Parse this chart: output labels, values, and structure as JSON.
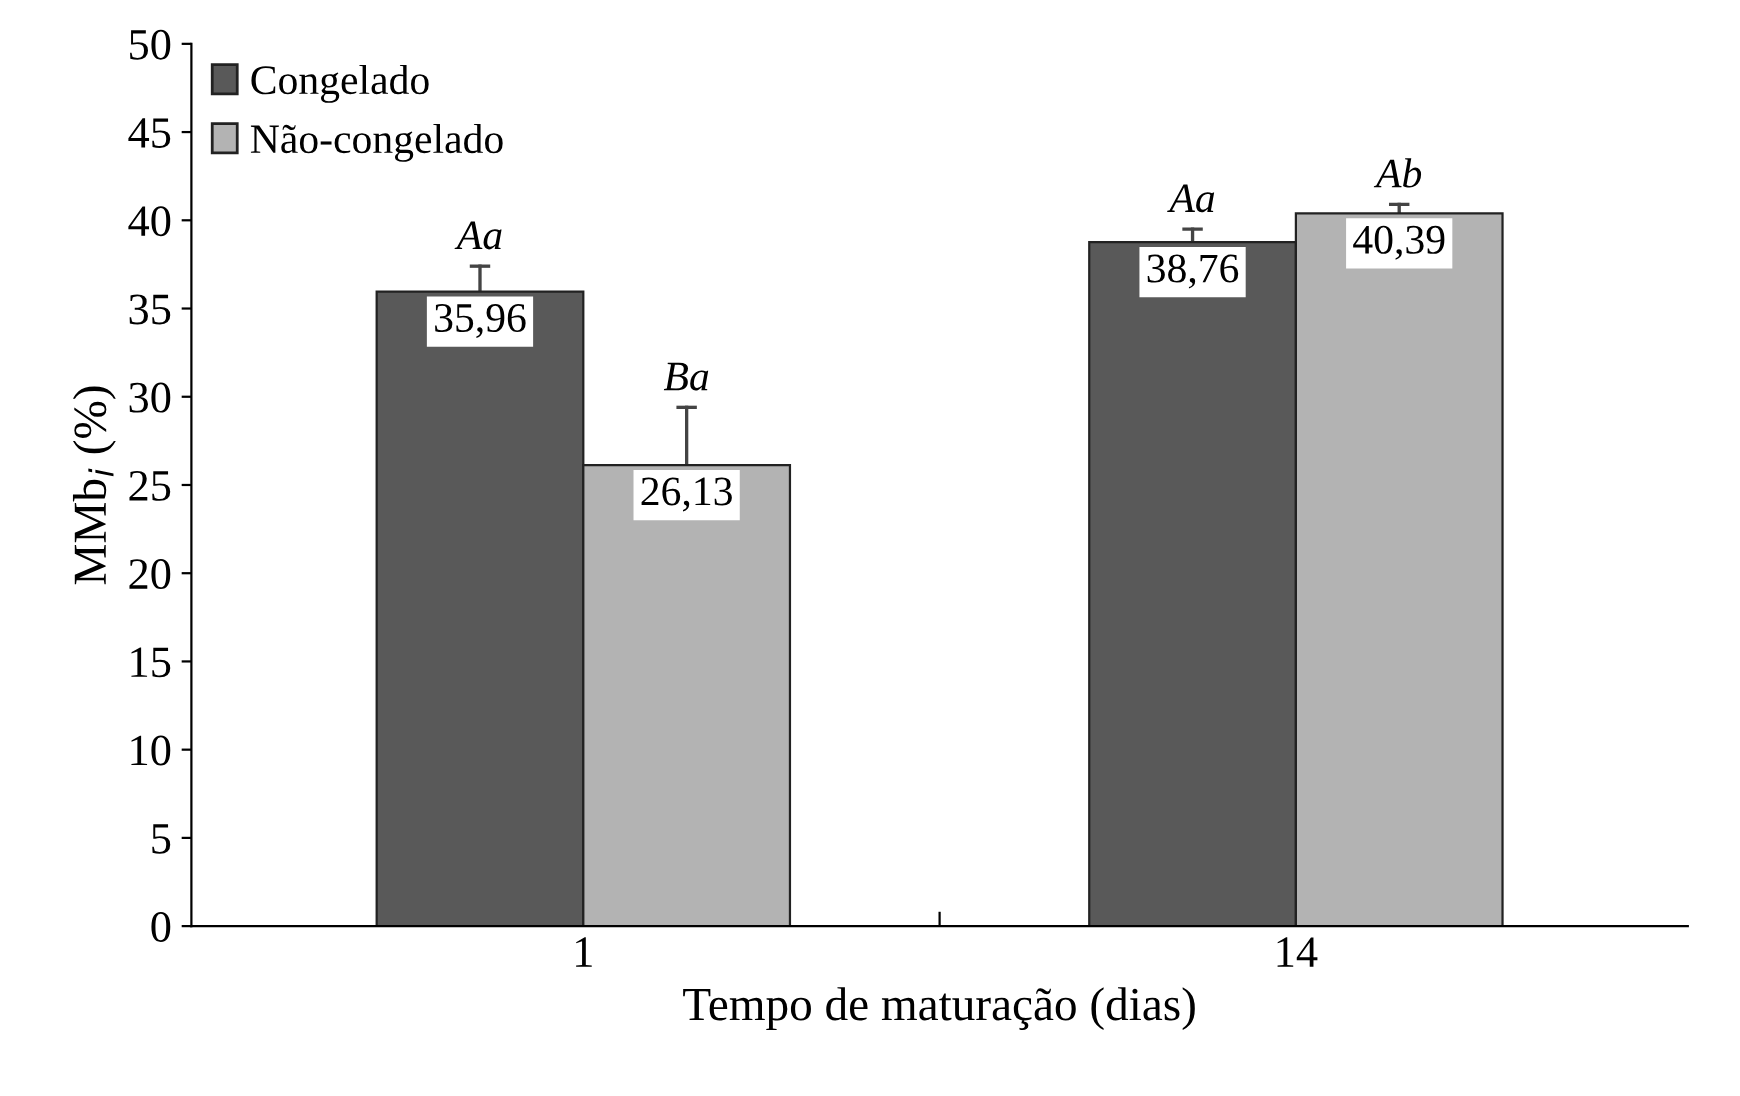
{
  "chart_data": {
    "type": "bar",
    "xlabel": "Tempo de maturação (dias)",
    "ylabel": "MMb$_{i}$ (%)",
    "categories": [
      "1",
      "14"
    ],
    "series": [
      {
        "name": "Congelado",
        "color": "#595959",
        "values": [
          35.96,
          38.76
        ],
        "value_labels": [
          "35,96",
          "38,76"
        ],
        "errors": [
          [
            35.96,
            37.4
          ],
          [
            38.76,
            39.5
          ]
        ]
      },
      {
        "name": "Não-congelado",
        "color": "#b3b3b3",
        "values": [
          26.13,
          40.39
        ],
        "value_labels": [
          "26,13",
          "40,39"
        ],
        "errors": [
          [
            26.13,
            29.4
          ],
          [
            40.39,
            40.9
          ]
        ]
      }
    ],
    "annotations": [
      {
        "text": "Aa",
        "x": "1",
        "y": 35.96
      },
      {
        "text": "Ba",
        "x": "1",
        "y": 26.13
      },
      {
        "text": "Aa",
        "x": "14",
        "y": 38.76
      },
      {
        "text": "Ab",
        "x": "14",
        "y": 40.39
      }
    ],
    "ylim": [
      0,
      50
    ],
    "yticks": [
      0,
      5,
      10,
      15,
      20,
      25,
      30,
      35,
      40,
      45,
      50
    ],
    "grid": false,
    "legend": "top left"
  }
}
